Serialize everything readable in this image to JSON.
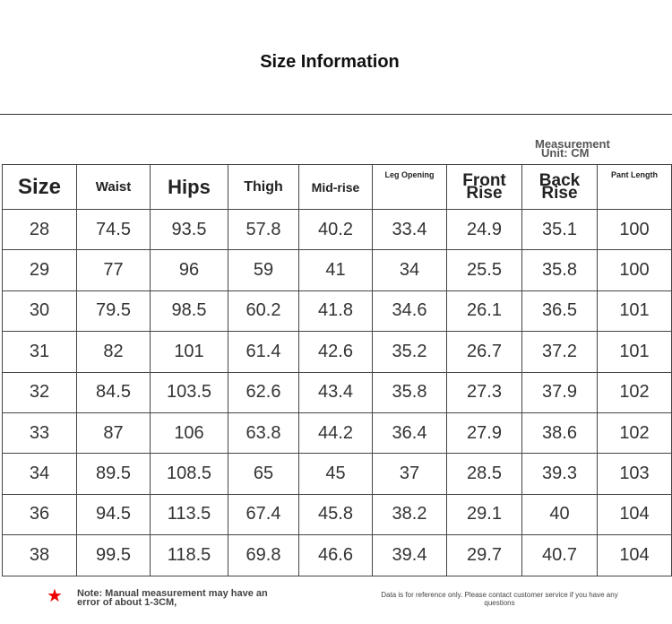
{
  "header": {
    "title": "Size Information"
  },
  "unit": {
    "line1": "Measurement",
    "line2": "Unit: CM"
  },
  "table": {
    "columns": [
      "Size",
      "Waist",
      "Hips",
      "Thigh",
      "Mid-rise",
      "Leg Opening",
      "Front Rise",
      "Back Rise",
      "Pant Length"
    ],
    "rows": [
      [
        "28",
        "74.5",
        "93.5",
        "57.8",
        "40.2",
        "33.4",
        "24.9",
        "35.1",
        "100"
      ],
      [
        "29",
        "77",
        "96",
        "59",
        "41",
        "34",
        "25.5",
        "35.8",
        "100"
      ],
      [
        "30",
        "79.5",
        "98.5",
        "60.2",
        "41.8",
        "34.6",
        "26.1",
        "36.5",
        "101"
      ],
      [
        "31",
        "82",
        "101",
        "61.4",
        "42.6",
        "35.2",
        "26.7",
        "37.2",
        "101"
      ],
      [
        "32",
        "84.5",
        "103.5",
        "62.6",
        "43.4",
        "35.8",
        "27.3",
        "37.9",
        "102"
      ],
      [
        "33",
        "87",
        "106",
        "63.8",
        "44.2",
        "36.4",
        "27.9",
        "38.6",
        "102"
      ],
      [
        "34",
        "89.5",
        "108.5",
        "65",
        "45",
        "37",
        "28.5",
        "39.3",
        "103"
      ],
      [
        "36",
        "94.5",
        "113.5",
        "67.4",
        "45.8",
        "38.2",
        "29.1",
        "40",
        "104"
      ],
      [
        "38",
        "99.5",
        "118.5",
        "69.8",
        "46.6",
        "39.4",
        "29.7",
        "40.7",
        "104"
      ]
    ]
  },
  "notes": {
    "left": "Note: Manual measurement may have an error of about 1-3CM,",
    "right": "Data is for reference only. Please contact customer service if you have any questions"
  }
}
